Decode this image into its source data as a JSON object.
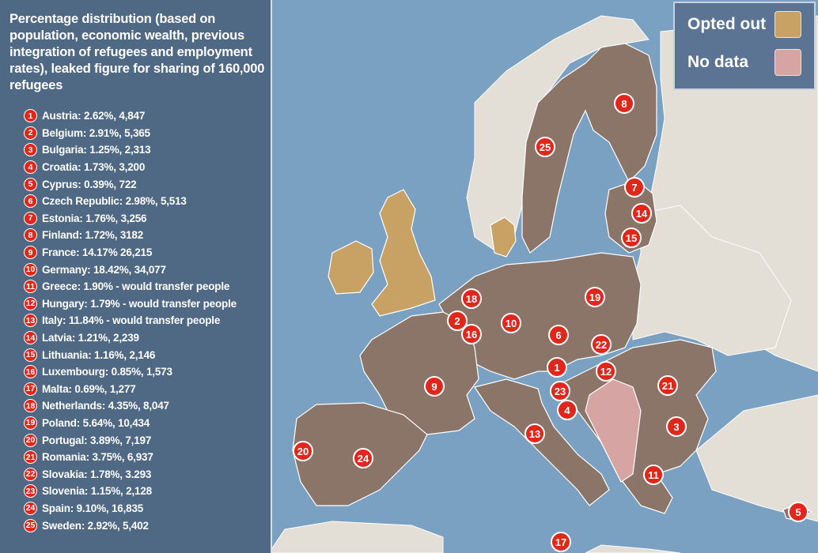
{
  "panel": {
    "title": "Percentage distribution (based on population, economic wealth, previous integration of refugees and employment rates), leaked figure for sharing of 160,000 refugees",
    "entries": [
      {
        "num": "1",
        "text": "Austria: 2.62%, 4,847"
      },
      {
        "num": "2",
        "text": "Belgium: 2.91%, 5,365"
      },
      {
        "num": "3",
        "text": "Bulgaria: 1.25%, 2,313"
      },
      {
        "num": "4",
        "text": "Croatia: 1.73%, 3,200"
      },
      {
        "num": "5",
        "text": "Cyprus: 0.39%, 722"
      },
      {
        "num": "6",
        "text": "Czech Republic: 2.98%, 5,513"
      },
      {
        "num": "7",
        "text": "Estonia: 1.76%, 3,256"
      },
      {
        "num": "8",
        "text": "Finland: 1.72%, 3182"
      },
      {
        "num": "9",
        "text": "France: 14.17% 26,215"
      },
      {
        "num": "10",
        "text": "Germany: 18.42%, 34,077"
      },
      {
        "num": "11",
        "text": "Greece: 1.90% - would transfer people"
      },
      {
        "num": "12",
        "text": "Hungary: 1.79% - would transfer people"
      },
      {
        "num": "13",
        "text": "Italy: 11.84% - would transfer people"
      },
      {
        "num": "14",
        "text": "Latvia: 1.21%, 2,239"
      },
      {
        "num": "15",
        "text": "Lithuania: 1.16%, 2,146"
      },
      {
        "num": "16",
        "text": "Luxembourg: 0.85%, 1,573"
      },
      {
        "num": "17",
        "text": "Malta: 0.69%, 1,277"
      },
      {
        "num": "18",
        "text": "Netherlands: 4.35%, 8,047"
      },
      {
        "num": "19",
        "text": "Poland: 5.64%, 10,434"
      },
      {
        "num": "20",
        "text": "Portugal: 3.89%, 7,197"
      },
      {
        "num": "21",
        "text": "Romania: 3.75%, 6,937"
      },
      {
        "num": "22",
        "text": "Slovakia: 1.78%, 3.293"
      },
      {
        "num": "23",
        "text": "Slovenia: 1.15%, 2,128"
      },
      {
        "num": "24",
        "text": "Spain: 9.10%, 16,835"
      },
      {
        "num": "25",
        "text": "Sweden: 2.92%, 5,402"
      }
    ]
  },
  "legend": {
    "opted_out_label": "Opted out",
    "opted_out_color": "#c8a265",
    "no_data_label": "No data",
    "no_data_color": "#d6a4a2"
  },
  "colors": {
    "sea": "#7ba1c2",
    "participating": "#8a7568",
    "non_eu": "#e3ded6",
    "marker": "#e1261c",
    "panel": "#4f6884"
  },
  "markers": [
    "8",
    "25",
    "7",
    "14",
    "15",
    "18",
    "19",
    "2",
    "16",
    "10",
    "6",
    "22",
    "9",
    "1",
    "12",
    "21",
    "23",
    "4",
    "3",
    "13",
    "20",
    "24",
    "11",
    "5",
    "17"
  ]
}
